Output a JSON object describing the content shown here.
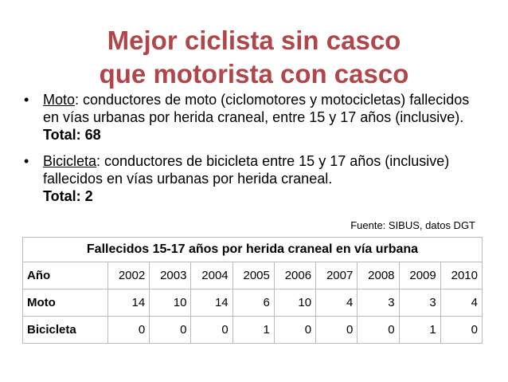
{
  "title": [
    "Mejor ciclista sin casco",
    "que motorista con casco"
  ],
  "bullets": [
    {
      "term": "Moto",
      "text": ": conductores de moto (ciclomotores y motocicletas) fallecidos en vías urbanas por herida craneal, entre 15 y 17 años (inclusive). ",
      "total": "Total: 68"
    },
    {
      "term": "Bicicleta",
      "text": ": conductores de bicicleta entre 15 y 17 años (inclusive) fallecidos en vías urbanas por herida craneal.",
      "total": "Total: 2"
    }
  ],
  "source": "Fuente: SIBUS, datos DGT",
  "table": {
    "caption": "Fallecidos 15-17 años por herida craneal en vía urbana",
    "header": [
      "Año",
      2002,
      2003,
      2004,
      2005,
      2006,
      2007,
      2008,
      2009,
      2010
    ],
    "rows": [
      [
        "Moto",
        14,
        10,
        14,
        6,
        10,
        4,
        3,
        3,
        4
      ],
      [
        "Bicicleta",
        0,
        0,
        0,
        1,
        0,
        0,
        0,
        1,
        0
      ]
    ]
  }
}
